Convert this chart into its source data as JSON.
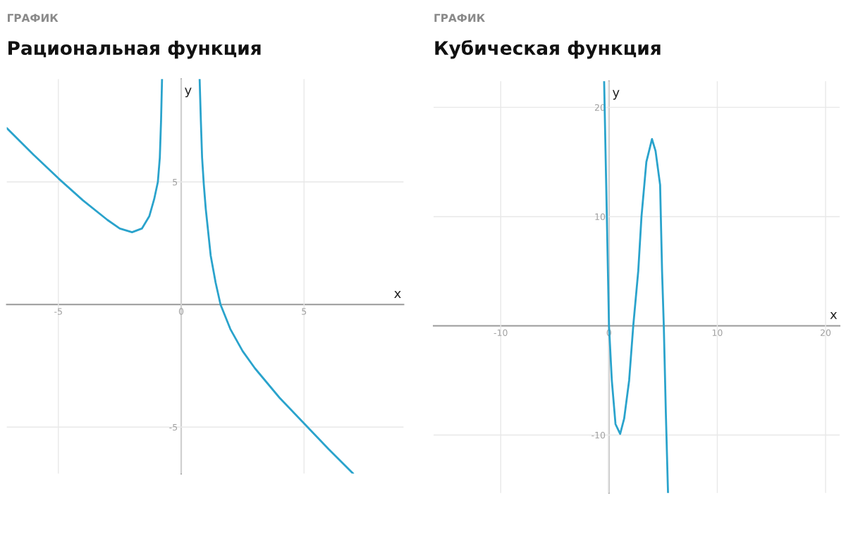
{
  "chart_data": [
    {
      "type": "line",
      "subtitle": "ГРАФИК",
      "title": "Рациональная функция",
      "xlabel": "x",
      "ylabel": "y",
      "xlim": [
        -7.1,
        9.05
      ],
      "ylim": [
        -6.9,
        9.2
      ],
      "xticks": [
        -5,
        0,
        5
      ],
      "yticks": [
        -5,
        5
      ],
      "grid": true,
      "series": [
        {
          "color": "#2aa3cc",
          "x": [
            -7.1,
            -6,
            -5,
            -4,
            -3,
            -2.5,
            -2,
            -1.6,
            -1.3,
            -1.1,
            -0.95,
            -0.87,
            -0.82,
            -0.78
          ],
          "values": [
            7.2,
            6.1,
            5.15,
            4.25,
            3.45,
            3.1,
            2.95,
            3.1,
            3.6,
            4.3,
            5.0,
            6.0,
            7.5,
            9.2
          ]
        },
        {
          "color": "#2aa3cc",
          "x": [
            0.75,
            0.8,
            0.85,
            0.92,
            1.0,
            1.2,
            1.4,
            1.6,
            2,
            2.5,
            3,
            4,
            5,
            6,
            7
          ],
          "values": [
            9.2,
            7.5,
            6.0,
            4.9,
            3.9,
            2.0,
            0.9,
            0,
            -1.0,
            -1.9,
            -2.6,
            -3.8,
            -4.85,
            -5.9,
            -6.9
          ]
        }
      ]
    },
    {
      "type": "line",
      "subtitle": "ГРАФИК",
      "title": "Кубическая функция",
      "xlabel": "x",
      "ylabel": "y",
      "xlim": [
        -16.2,
        21.3
      ],
      "ylim": [
        -15.3,
        22.4
      ],
      "xticks": [
        -10,
        0,
        10,
        20
      ],
      "yticks": [
        -10,
        10,
        20
      ],
      "grid": true,
      "series": [
        {
          "color": "#2aa3cc",
          "x": [
            -0.45,
            -0.2,
            0,
            0.26,
            0.6,
            1.03,
            1.4,
            1.86,
            2.24,
            2.7,
            3.0,
            3.45,
            3.97,
            4.3,
            4.72,
            4.9,
            5.06,
            5.25,
            5.45
          ],
          "values": [
            22.4,
            10,
            0,
            -5,
            -9,
            -9.9,
            -8.5,
            -5,
            0,
            5,
            10,
            15,
            17.1,
            16,
            12.9,
            5,
            0,
            -8,
            -15.3
          ]
        }
      ]
    }
  ]
}
